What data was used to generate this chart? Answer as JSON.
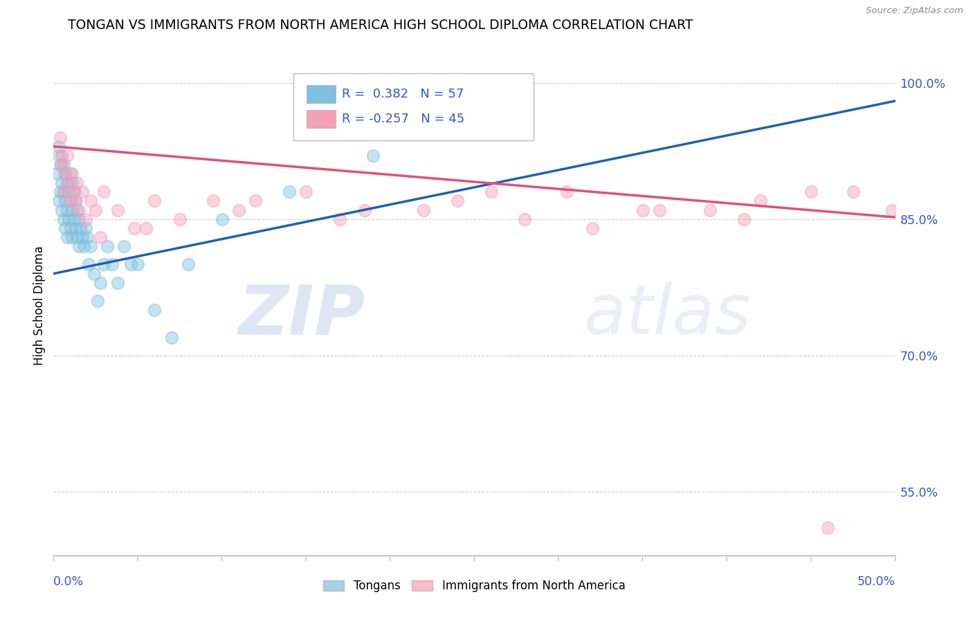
{
  "title": "TONGAN VS IMMIGRANTS FROM NORTH AMERICA HIGH SCHOOL DIPLOMA CORRELATION CHART",
  "source": "Source: ZipAtlas.com",
  "ylabel": "High School Diploma",
  "xlim": [
    0.0,
    0.5
  ],
  "ylim": [
    0.48,
    1.03
  ],
  "R_blue": 0.382,
  "N_blue": 57,
  "R_pink": -0.257,
  "N_pink": 45,
  "legend_labels": [
    "Tongans",
    "Immigrants from North America"
  ],
  "blue_color": "#7fbfdf",
  "pink_color": "#f4a0b8",
  "blue_line_color": "#2060b0",
  "pink_line_color": "#e0507a",
  "watermark_zip": "ZIP",
  "watermark_atlas": "atlas",
  "title_fontsize": 13.5,
  "axis_label_color": "#3355cc",
  "tick_label_color": "#3355cc",
  "y_ticks": [
    1.0,
    0.85,
    0.7,
    0.55
  ],
  "y_tick_labels": [
    "100.0%",
    "85.0%",
    "70.0%",
    "55.0%"
  ],
  "blue_scatter_x": [
    0.002,
    0.003,
    0.003,
    0.004,
    0.004,
    0.005,
    0.005,
    0.005,
    0.006,
    0.006,
    0.006,
    0.007,
    0.007,
    0.007,
    0.008,
    0.008,
    0.008,
    0.009,
    0.009,
    0.01,
    0.01,
    0.01,
    0.011,
    0.011,
    0.011,
    0.012,
    0.012,
    0.013,
    0.013,
    0.014,
    0.014,
    0.015,
    0.015,
    0.016,
    0.017,
    0.018,
    0.019,
    0.02,
    0.021,
    0.022,
    0.024,
    0.026,
    0.028,
    0.03,
    0.032,
    0.035,
    0.038,
    0.042,
    0.046,
    0.05,
    0.06,
    0.07,
    0.08,
    0.1,
    0.14,
    0.19,
    0.27
  ],
  "blue_scatter_y": [
    0.9,
    0.87,
    0.93,
    0.88,
    0.91,
    0.86,
    0.89,
    0.92,
    0.85,
    0.88,
    0.91,
    0.84,
    0.87,
    0.9,
    0.83,
    0.86,
    0.89,
    0.85,
    0.88,
    0.84,
    0.87,
    0.9,
    0.83,
    0.86,
    0.89,
    0.85,
    0.88,
    0.84,
    0.87,
    0.83,
    0.86,
    0.82,
    0.85,
    0.84,
    0.83,
    0.82,
    0.84,
    0.83,
    0.8,
    0.82,
    0.79,
    0.76,
    0.78,
    0.8,
    0.82,
    0.8,
    0.78,
    0.82,
    0.8,
    0.8,
    0.75,
    0.72,
    0.8,
    0.85,
    0.88,
    0.92,
    0.96
  ],
  "pink_scatter_x": [
    0.003,
    0.004,
    0.005,
    0.006,
    0.007,
    0.008,
    0.009,
    0.01,
    0.011,
    0.012,
    0.013,
    0.014,
    0.015,
    0.017,
    0.019,
    0.022,
    0.025,
    0.03,
    0.038,
    0.048,
    0.06,
    0.075,
    0.095,
    0.12,
    0.15,
    0.185,
    0.22,
    0.26,
    0.305,
    0.35,
    0.39,
    0.42,
    0.45,
    0.475,
    0.498,
    0.028,
    0.055,
    0.11,
    0.17,
    0.24,
    0.28,
    0.32,
    0.36,
    0.41,
    0.46
  ],
  "pink_scatter_y": [
    0.92,
    0.94,
    0.91,
    0.88,
    0.9,
    0.92,
    0.89,
    0.87,
    0.9,
    0.88,
    0.87,
    0.89,
    0.86,
    0.88,
    0.85,
    0.87,
    0.86,
    0.88,
    0.86,
    0.84,
    0.87,
    0.85,
    0.87,
    0.87,
    0.88,
    0.86,
    0.86,
    0.88,
    0.88,
    0.86,
    0.86,
    0.87,
    0.88,
    0.88,
    0.86,
    0.83,
    0.84,
    0.86,
    0.85,
    0.87,
    0.85,
    0.84,
    0.86,
    0.85,
    0.51
  ],
  "blue_line_x0": 0.0,
  "blue_line_x1": 0.5,
  "blue_line_y0": 0.79,
  "blue_line_y1": 0.98,
  "pink_line_x0": 0.0,
  "pink_line_x1": 0.5,
  "pink_line_y0": 0.93,
  "pink_line_y1": 0.852
}
